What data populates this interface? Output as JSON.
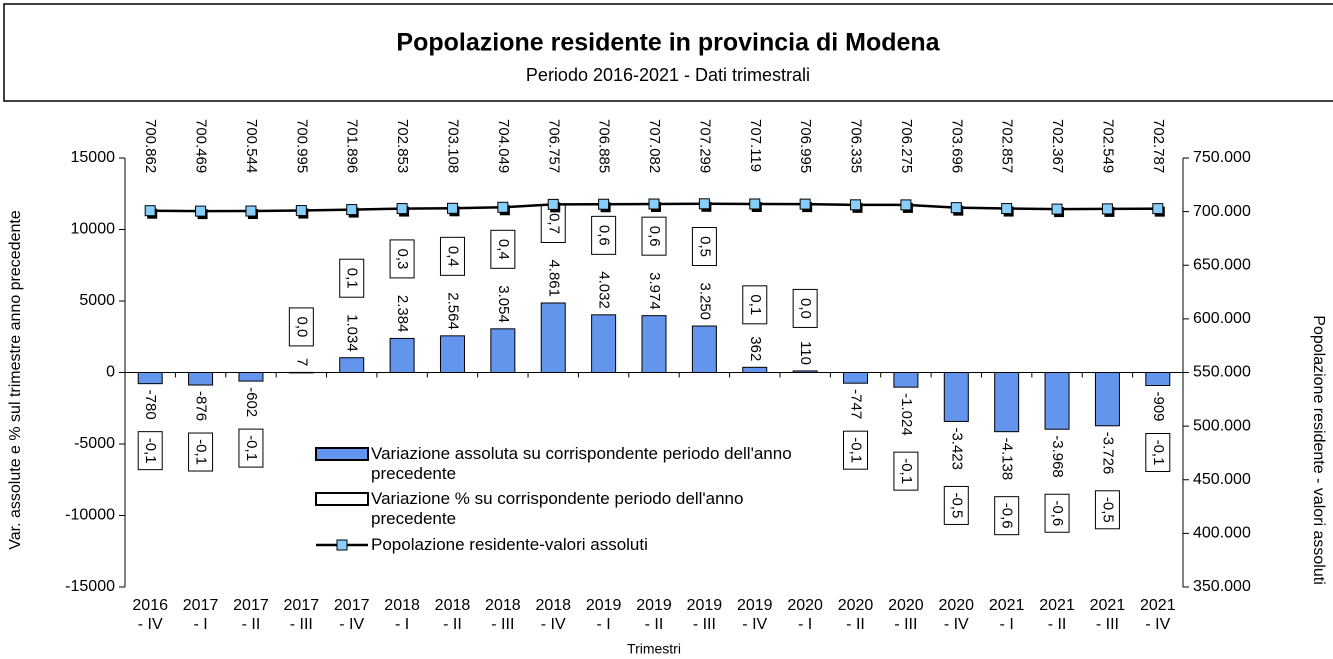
{
  "chart_data": {
    "type": "bar_line",
    "title": "Popolazione residente in provincia di Modena",
    "subtitle": "Periodo 2016-2021 - Dati trimestrali",
    "x_label": "Trimestri",
    "y_label": "Var. assolute e % sul trimestre anno precedente",
    "y2_label": "Popolazione residente - valori assoluti",
    "categories": [
      "2016 - IV",
      "2017 - I",
      "2017 - II",
      "2017 - III",
      "2017 - IV",
      "2018 - I",
      "2018 - II",
      "2018 - III",
      "2018 - IV",
      "2019 - I",
      "2019 - II",
      "2019 - III",
      "2019 - IV",
      "2020 - I",
      "2020 - II",
      "2020 - III",
      "2020 - IV",
      "2021 - I",
      "2021 - II",
      "2021 - III",
      "2021 - IV"
    ],
    "ylim": [
      -15000,
      15000
    ],
    "yticks": [
      -15000,
      -10000,
      -5000,
      0,
      5000,
      10000,
      15000
    ],
    "y2lim": [
      350000,
      750000
    ],
    "y2ticks": [
      {
        "value": 350000,
        "label": "350.000"
      },
      {
        "value": 400000,
        "label": "400.000"
      },
      {
        "value": 450000,
        "label": "450.000"
      },
      {
        "value": 500000,
        "label": "500.000"
      },
      {
        "value": 550000,
        "label": "550.000"
      },
      {
        "value": 600000,
        "label": "600.000"
      },
      {
        "value": 650000,
        "label": "650.000"
      },
      {
        "value": 700000,
        "label": "700.000"
      },
      {
        "value": 750000,
        "label": "750.000"
      }
    ],
    "series": [
      {
        "name": "Variazione assoluta su corrispondente periodo dell'anno precedente",
        "type": "bar",
        "color": "#6495ed",
        "values": [
          -780,
          -876,
          -602,
          7,
          1034,
          2384,
          2564,
          3054,
          4861,
          4032,
          3974,
          3250,
          362,
          110,
          -747,
          -1024,
          -3423,
          -4138,
          -3968,
          -3726,
          -909
        ],
        "value_labels": [
          "-780",
          "-876",
          "-602",
          "7",
          "1.034",
          "2.384",
          "2.564",
          "3.054",
          "4.861",
          "4.032",
          "3.974",
          "3.250",
          "362",
          "110",
          "-747",
          "-1.024",
          "-3.423",
          "-4.138",
          "-3.968",
          "-3.726",
          "-909"
        ]
      },
      {
        "name": "Variazione % su corrispondente periodo dell'anno precedente",
        "type": "bar",
        "color": "#ffffff",
        "values": [
          -0.1,
          -0.1,
          -0.1,
          0.0,
          0.1,
          0.3,
          0.4,
          0.4,
          0.7,
          0.6,
          0.6,
          0.5,
          0.1,
          0.0,
          -0.1,
          -0.1,
          -0.5,
          -0.6,
          -0.6,
          -0.5,
          -0.1
        ],
        "value_labels": [
          "-0,1",
          "-0,1",
          "-0,1",
          "0,0",
          "0,1",
          "0,3",
          "0,4",
          "0,4",
          "0,7",
          "0,6",
          "0,6",
          "0,5",
          "0,1",
          "0,0",
          "-0,1",
          "-0,1",
          "-0,5",
          "-0,6",
          "-0,6",
          "-0,5",
          "-0,1"
        ]
      },
      {
        "name": "Popolazione residente-valori assoluti",
        "type": "line",
        "axis": "y2",
        "color": "#87cefa",
        "values": [
          700862,
          700469,
          700544,
          700995,
          701896,
          702853,
          703108,
          704049,
          706757,
          706885,
          707082,
          707299,
          707119,
          706995,
          706335,
          706275,
          703696,
          702857,
          702367,
          702549,
          702787
        ],
        "value_labels": [
          "700.862",
          "700.469",
          "700.544",
          "700.995",
          "701.896",
          "702.853",
          "703.108",
          "704.049",
          "706.757",
          "706.885",
          "707.082",
          "707.299",
          "707.119",
          "706.995",
          "706.335",
          "706.275",
          "703.696",
          "702.857",
          "702.367",
          "702.549",
          "702.787"
        ]
      }
    ]
  }
}
